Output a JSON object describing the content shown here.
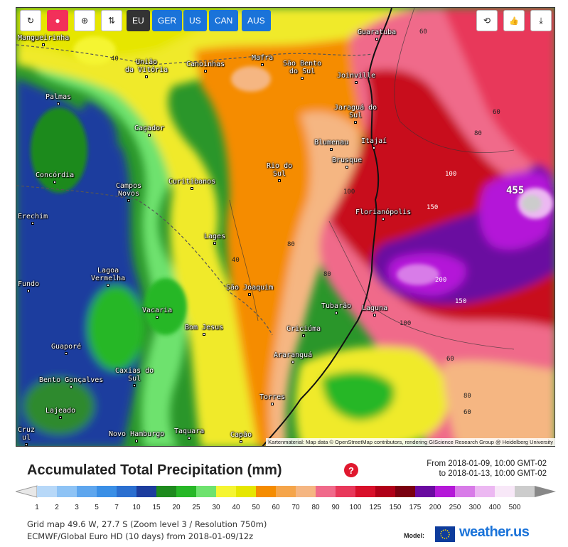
{
  "toolbar": {
    "buttons": [
      {
        "name": "refresh-icon",
        "glyph": "↻"
      },
      {
        "name": "location-pin-icon",
        "glyph": "●"
      },
      {
        "name": "zoom-in-icon",
        "glyph": "⊕"
      },
      {
        "name": "sort-icon",
        "glyph": "⇅"
      }
    ],
    "regions": [
      "EU",
      "GER",
      "US",
      "CAN",
      "AUS"
    ],
    "active_region": "EU",
    "right_buttons": [
      {
        "name": "repeat-icon",
        "glyph": "⟲"
      },
      {
        "name": "thumbs-up-icon",
        "glyph": "👍"
      },
      {
        "name": "download-icon",
        "glyph": "⤓"
      }
    ]
  },
  "map": {
    "cities": [
      {
        "name": "Mangueirinha"
      },
      {
        "name": "Guaratuba"
      },
      {
        "name": "União\nda Vitória"
      },
      {
        "name": "Canoinhas"
      },
      {
        "name": "Mafra"
      },
      {
        "name": "São Bento\ndo Sul"
      },
      {
        "name": "Joinville"
      },
      {
        "name": "Palmas"
      },
      {
        "name": "Jaraguá do\nSul"
      },
      {
        "name": "Caçador"
      },
      {
        "name": "Blumenau"
      },
      {
        "name": "Itajaí"
      },
      {
        "name": "Brusque"
      },
      {
        "name": "Rio do\nSul"
      },
      {
        "name": "Concórdia"
      },
      {
        "name": "Campos\nNovos"
      },
      {
        "name": "Curitibanos"
      },
      {
        "name": "Florianópolis"
      },
      {
        "name": "Erechim"
      },
      {
        "name": "Lages"
      },
      {
        "name": "Lagoa\nVermelha"
      },
      {
        "name": "Fundo"
      },
      {
        "name": "São Joaquim"
      },
      {
        "name": "Vacaria"
      },
      {
        "name": "Tubarão"
      },
      {
        "name": "Laguna"
      },
      {
        "name": "Bom Jesus"
      },
      {
        "name": "Criciúma"
      },
      {
        "name": "Guaporé"
      },
      {
        "name": "Araranguá"
      },
      {
        "name": "Caxias do\nSul"
      },
      {
        "name": "Bento Gonçalves"
      },
      {
        "name": "Torres"
      },
      {
        "name": "Lajeado"
      },
      {
        "name": "Cruz\nul"
      },
      {
        "name": "Novo Hamburgo"
      },
      {
        "name": "Taquara"
      },
      {
        "name": "Capão"
      }
    ],
    "contour_labels": [
      "40",
      "60",
      "60",
      "80",
      "100",
      "100",
      "150",
      "80",
      "40",
      "80",
      "200",
      "150",
      "100",
      "60",
      "80",
      "60"
    ],
    "peak_value": "455",
    "attribution": "Kartenmaterial: Map data © OpenStreetMap contributors, rendering GIScience Research Group @ Heidelberg University"
  },
  "title": "Accumulated Total Precipitation (mm)",
  "date_from": "From 2018-01-09, 10:00 GMT-02",
  "date_to": "to 2018-01-13, 10:00 GMT-02",
  "legend": {
    "ticks": [
      "1",
      "2",
      "3",
      "5",
      "7",
      "10",
      "15",
      "20",
      "25",
      "30",
      "40",
      "50",
      "60",
      "70",
      "80",
      "90",
      "100",
      "125",
      "150",
      "175",
      "200",
      "250",
      "300",
      "400",
      "500"
    ],
    "colors": [
      "#b7d8f8",
      "#8ec3f5",
      "#5ea6ee",
      "#3a8fe6",
      "#2b6fd0",
      "#1d3d9e",
      "#1e8a1e",
      "#27b727",
      "#6ee26e",
      "#f5f532",
      "#e6e600",
      "#f58c00",
      "#f5a54a",
      "#f5b682",
      "#f06a8a",
      "#e8385a",
      "#d8102a",
      "#b00018",
      "#7a0010",
      "#6a0aa0",
      "#b418d8",
      "#d87be8",
      "#ecb8f2",
      "#f8e8f8",
      "#cccccc"
    ]
  },
  "info_line1": "Grid map 49.6 W, 27.7 S (Zoom level 3 / Resolution 750m)",
  "info_line2": "ECMWF/Global Euro HD (10 days) from 2018-01-09/12z",
  "model_label": "Model:",
  "brand": "weather.us"
}
